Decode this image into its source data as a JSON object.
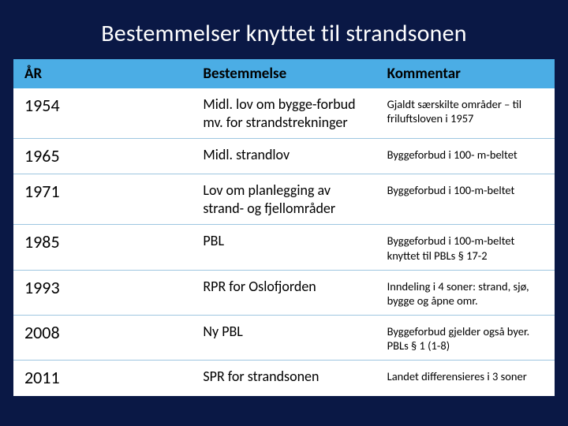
{
  "title": "Bestemmelser knyttet til strandsonen",
  "columns": {
    "year": "ÅR",
    "best": "Bestemmelse",
    "kom": "Kommentar"
  },
  "rows": [
    {
      "year": "1954",
      "best": "Midl. lov om bygge-forbud mv. for strandstrekninger",
      "kom": "Gjaldt særskilte områder – til friluftsloven i 1957"
    },
    {
      "year": "1965",
      "best": "Midl. strandlov",
      "kom": "Byggeforbud i 100- m-beltet"
    },
    {
      "year": "1971",
      "best": "Lov om planlegging av strand- og fjellområder",
      "kom": "Byggeforbud i 100-m-beltet"
    },
    {
      "year": "1985",
      "best": "PBL",
      "kom": "Byggeforbud i 100-m-beltet knyttet til PBLs § 17-2"
    },
    {
      "year": "1993",
      "best": "RPR for Oslofjorden",
      "kom": "Inndeling i 4 soner: strand, sjø, bygge og åpne omr."
    },
    {
      "year": "2008",
      "best": "Ny PBL",
      "kom": "Byggeforbud gjelder også byer. PBLs § 1 (1-8)"
    },
    {
      "year": "2011",
      "best": "SPR for strandsonen",
      "kom": "Landet differensieres i 3 soner"
    }
  ],
  "styling": {
    "background_color": "#0a1845",
    "title_color": "#ffffff",
    "title_fontsize_pt": 24,
    "header_bg": "#4bade5",
    "header_text_color": "#000000",
    "header_fontsize_pt": 15,
    "cell_bg": "#ffffff",
    "cell_text_color": "#000000",
    "row_border_color": "#9ec6e0",
    "year_fontsize_pt": 17,
    "best_fontsize_pt": 14,
    "kom_fontsize_pt": 11,
    "col_widths_pct": [
      33,
      34,
      33
    ]
  }
}
